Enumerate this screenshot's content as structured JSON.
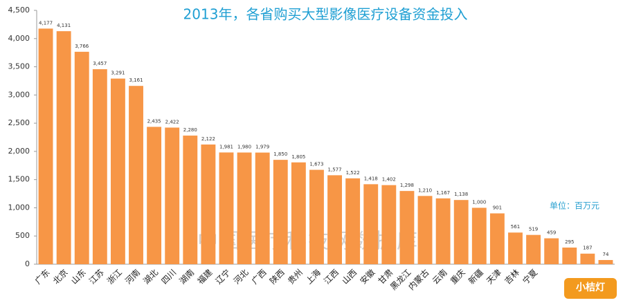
{
  "chart_data": {
    "type": "bar",
    "title": "2013年，各省购买大型影像医疗设备资金投入",
    "unit_note": "单位：百万元",
    "watermark": "中国医疗科技网数据库",
    "logo": "小桔灯",
    "categories": [
      "广东",
      "北京",
      "山东",
      "江苏",
      "浙江",
      "河南",
      "湖北",
      "四川",
      "湖南",
      "福建",
      "辽宁",
      "河北",
      "广西",
      "陕西",
      "贵州",
      "上海",
      "江西",
      "山西",
      "安徽",
      "甘肃",
      "黑龙江",
      "内蒙古",
      "云南",
      "重庆",
      "新疆",
      "天津",
      "吉林",
      "宁夏",
      null,
      null,
      null,
      null
    ],
    "values": [
      4177,
      4131,
      3766,
      3457,
      3291,
      3161,
      2435,
      2422,
      2280,
      2122,
      1981,
      1980,
      1979,
      1850,
      1805,
      1673,
      1577,
      1522,
      1418,
      1402,
      1298,
      1210,
      1167,
      1138,
      1000,
      901,
      561,
      519,
      459,
      295,
      187,
      74
    ],
    "value_labels": [
      "4,177",
      "4,131",
      "3,766",
      "3,457",
      "3,291",
      "3,161",
      "2,435",
      "2,422",
      "2,280",
      "2,122",
      "1,981",
      "1,980",
      "1,979",
      "1,850",
      "1,805",
      "1,673",
      "1,577",
      "1,522",
      "1,418",
      "1,402",
      "1,298",
      "1,210",
      "1,167",
      "1,138",
      "1,000",
      "901",
      "561",
      "519",
      "459",
      "295",
      "187",
      "74"
    ],
    "color": "#f79646",
    "ylim": [
      0,
      4500
    ],
    "yticks": [
      0,
      500,
      {
        "value": 1000,
        "label": "1,000"
      },
      {
        "value": 1500,
        "label": "1,500"
      },
      {
        "value": 2000,
        "label": "2,000"
      },
      {
        "value": 2500,
        "label": "2,500"
      },
      {
        "value": 3000,
        "label": "3,000"
      },
      {
        "value": 3500,
        "label": "3,500"
      },
      {
        "value": 4000,
        "label": "4,000"
      },
      {
        "value": 4500,
        "label": "4,500"
      }
    ],
    "grid": false
  }
}
